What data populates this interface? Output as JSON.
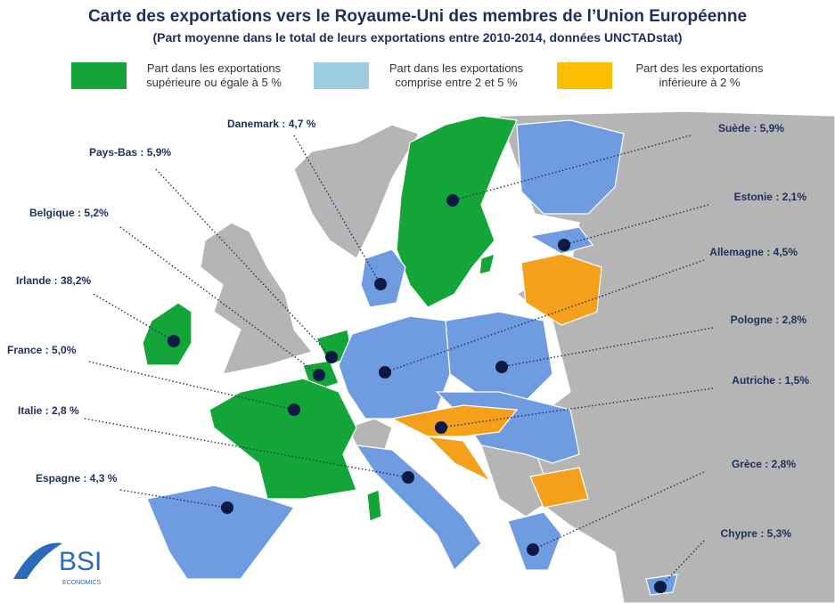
{
  "header": {
    "title": "Carte des exportations vers le Royaume-Uni des membres de l’Union Européenne",
    "subtitle": "(Part moyenne dans le total de leurs exportations entre 2010-2014, données UNCTADstat)"
  },
  "legend": [
    {
      "label": "Part dans les exportations supérieure ou égale à 5 %",
      "color": "#13a538"
    },
    {
      "label": "Part dans les exportations comprise entre 2 et 5 %",
      "color": "#9dcbe0"
    },
    {
      "label": "Part des les exportations inférieure à 2 %",
      "color": "#fcbf00"
    }
  ],
  "countries": [
    {
      "label": "Danemark : 4,7 %"
    },
    {
      "label": "Pays-Bas : 5,9%"
    },
    {
      "label": "Belgique : 5,2%"
    },
    {
      "label": "Irlande : 38,2%"
    },
    {
      "label": "France : 5,0%"
    },
    {
      "label": "Italie : 2,8 %"
    },
    {
      "label": "Espagne : 4,3 %"
    },
    {
      "label": "Suède : 5,9%"
    },
    {
      "label": "Estonie : 2,1%"
    },
    {
      "label": "Allemagne : 4,5%"
    },
    {
      "label": "Pologne : 2,8%"
    },
    {
      "label": "Autriche : 1,5%"
    },
    {
      "label": "Grèce : 2,8%"
    },
    {
      "label": "Chypre : 5,3%"
    }
  ],
  "logo": {
    "name": "BSI",
    "tagline": "ECONOMICS"
  }
}
